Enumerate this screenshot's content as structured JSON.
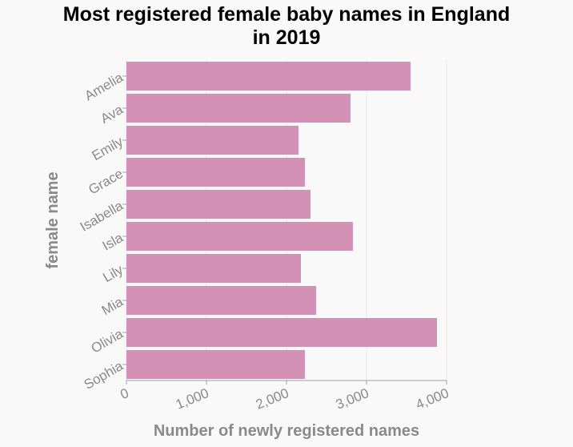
{
  "chart_data": {
    "type": "bar",
    "orientation": "horizontal",
    "title_line1": "Most registered female baby names in England",
    "title_line2": "in 2019",
    "xlabel": "Number of newly registered names",
    "ylabel": "female name",
    "categories": [
      "Amelia",
      "Ava",
      "Emily",
      "Grace",
      "Isabella",
      "Isla",
      "Lily",
      "Mia",
      "Olivia",
      "Sophia"
    ],
    "values": [
      3550,
      2800,
      2150,
      2230,
      2300,
      2830,
      2180,
      2370,
      3880,
      2230
    ],
    "xlim": [
      0,
      4000
    ],
    "xticks": [
      0,
      1000,
      2000,
      3000,
      4000
    ],
    "xtick_labels": [
      "0",
      "1,000",
      "2,000",
      "3,000",
      "4,000"
    ],
    "bar_color": "#d291b5",
    "grid": true
  }
}
